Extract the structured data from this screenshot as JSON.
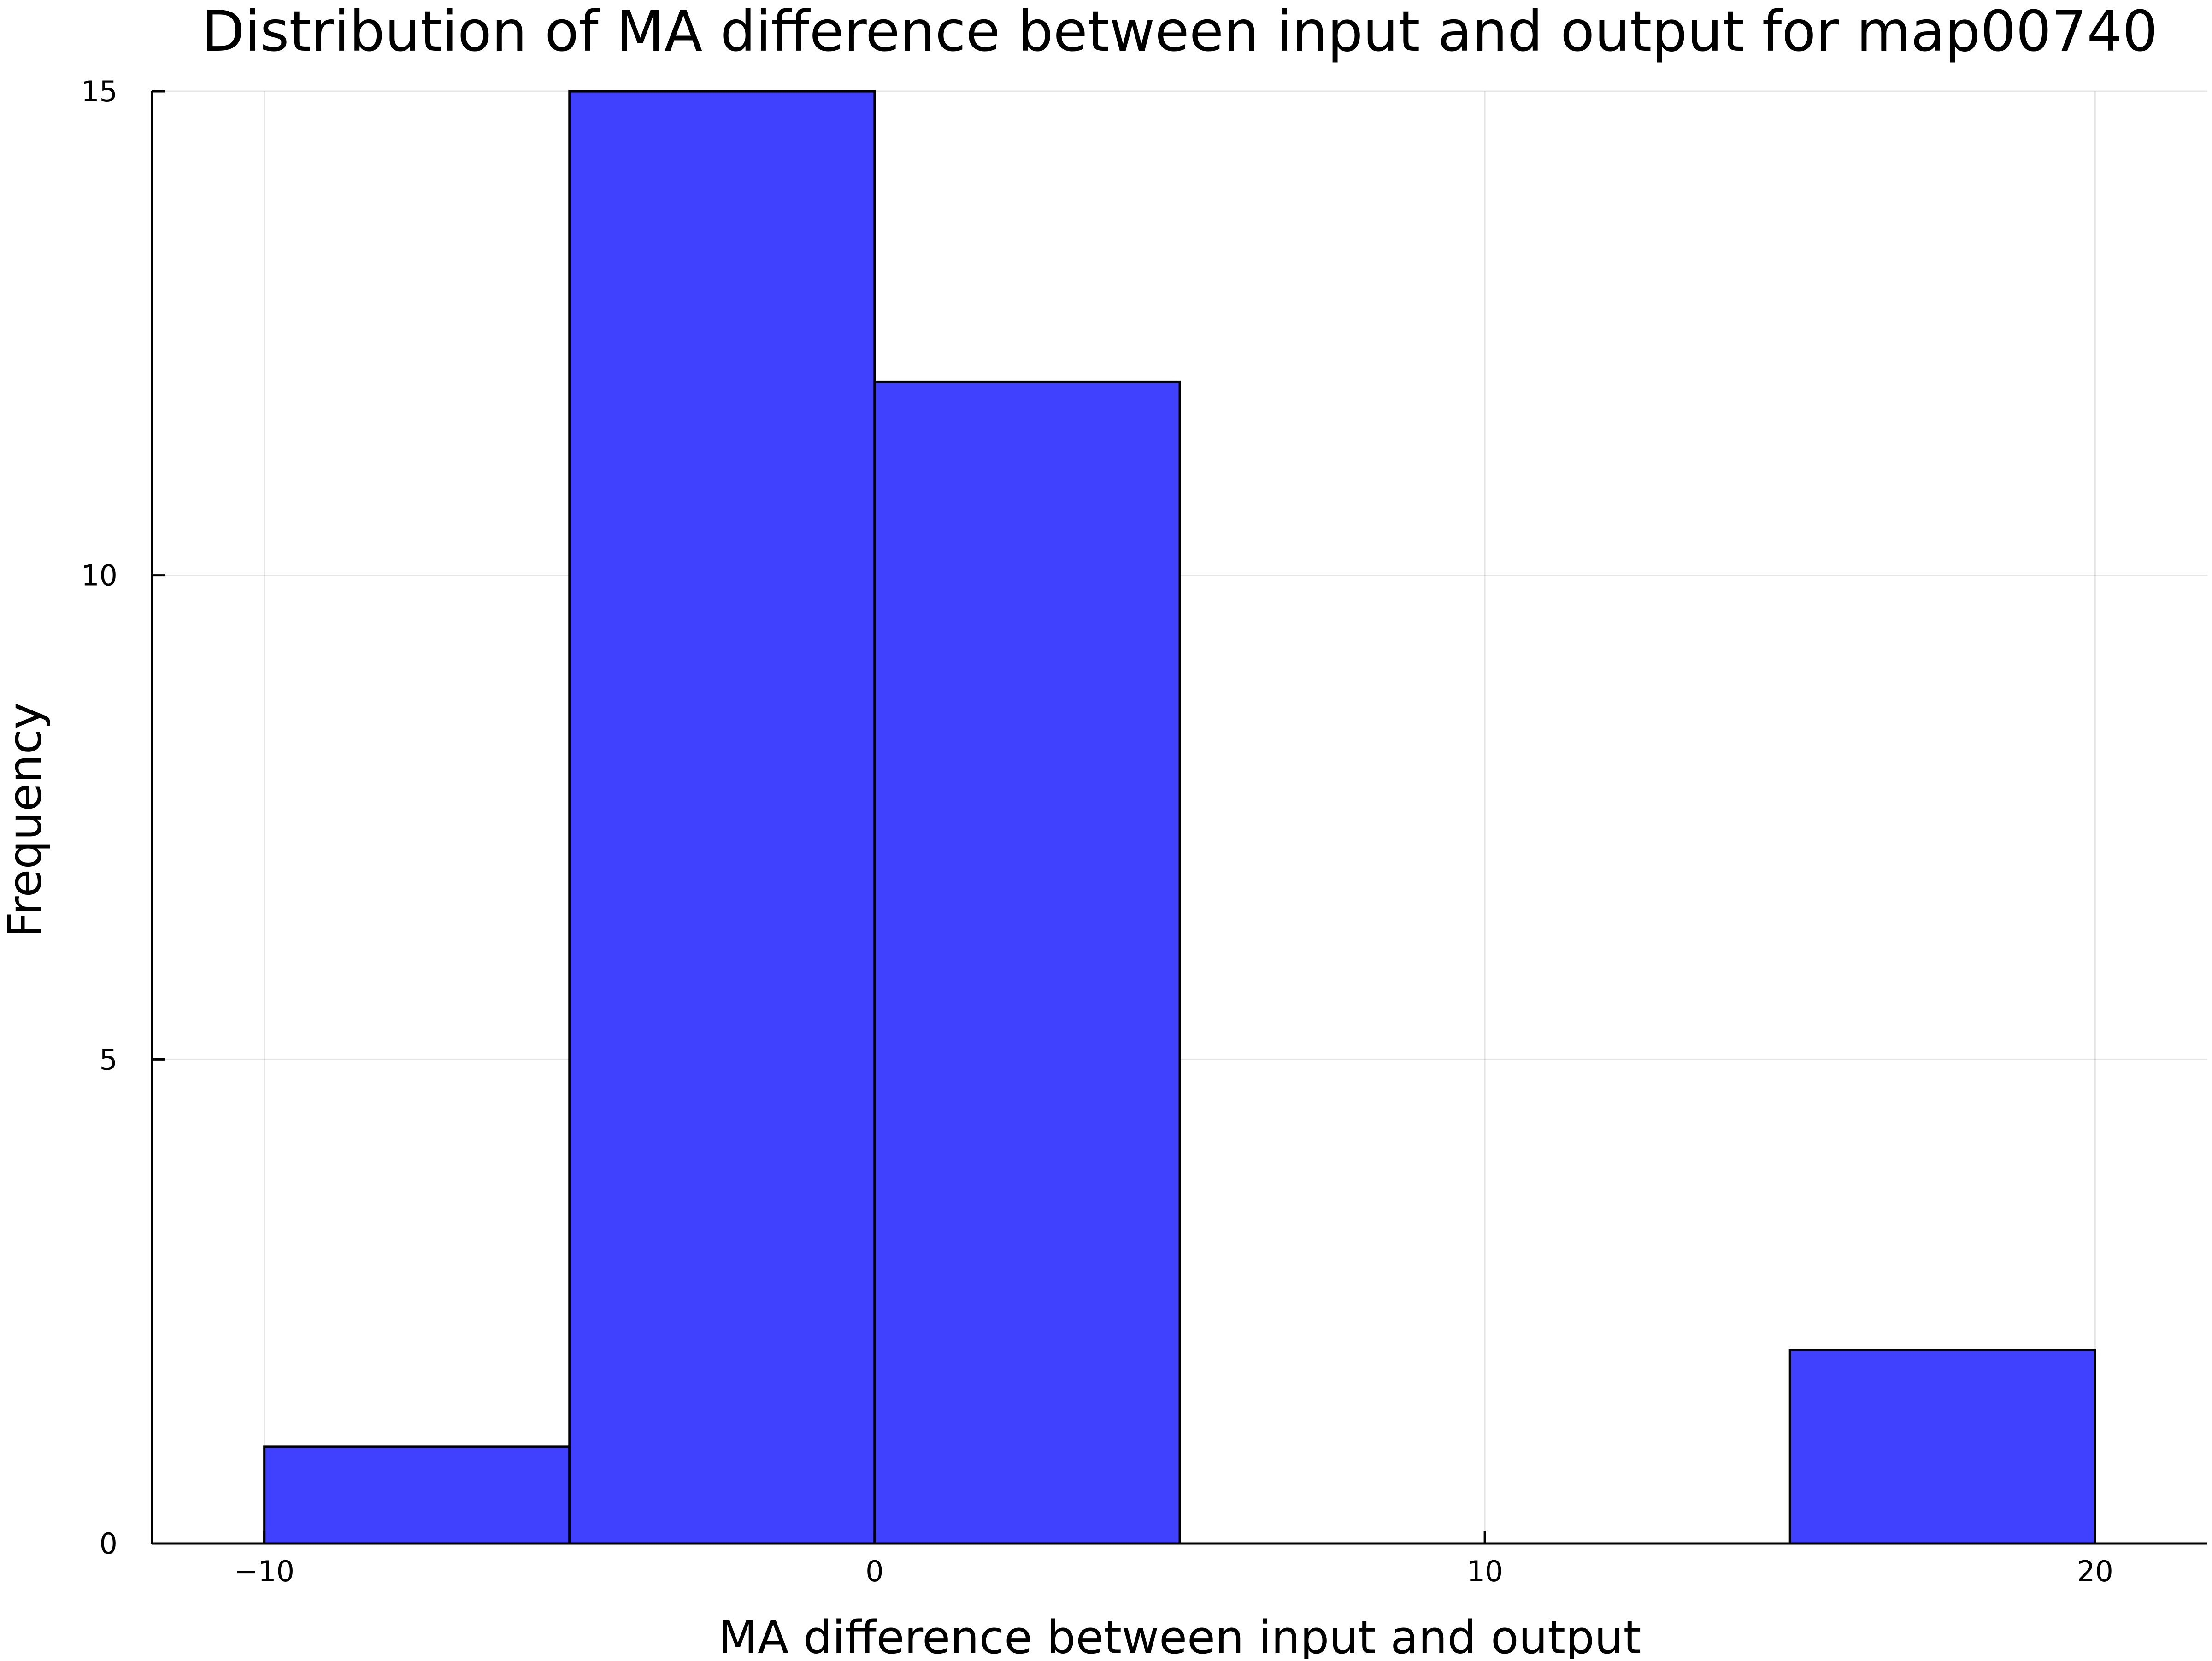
{
  "chart_data": {
    "type": "bar",
    "title": "Distribution of MA difference between input and output for map00740",
    "xlabel": "MA difference between input and output",
    "ylabel": "Frequency",
    "bins": [
      {
        "start": -10,
        "end": -5,
        "count": 1
      },
      {
        "start": -5,
        "end": 0,
        "count": 15
      },
      {
        "start": 0,
        "end": 5,
        "count": 12
      },
      {
        "start": 5,
        "end": 10,
        "count": 0
      },
      {
        "start": 10,
        "end": 15,
        "count": 0
      },
      {
        "start": 15,
        "end": 20,
        "count": 2
      }
    ],
    "xticks": [
      {
        "value": -10,
        "label": "−10"
      },
      {
        "value": 0,
        "label": "0"
      },
      {
        "value": 10,
        "label": "10"
      },
      {
        "value": 20,
        "label": "20"
      }
    ],
    "yticks": [
      {
        "value": 0,
        "label": "0"
      },
      {
        "value": 5,
        "label": "5"
      },
      {
        "value": 10,
        "label": "10"
      },
      {
        "value": 15,
        "label": "15"
      }
    ],
    "xlim": [
      -11.84,
      21.84
    ],
    "ylim": [
      0,
      15
    ],
    "grid": true,
    "legend": "none",
    "bar_color": "#4040ff",
    "edge_color": "#000000"
  }
}
